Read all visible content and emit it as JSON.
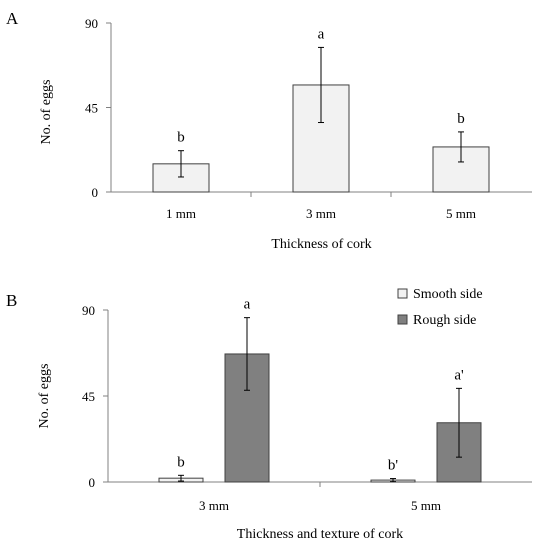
{
  "chart_data": [
    {
      "type": "bar",
      "panel": "A",
      "categories": [
        "1 mm",
        "3 mm",
        "5 mm"
      ],
      "series": [
        {
          "values": [
            15,
            57,
            24
          ],
          "errors": [
            7,
            20,
            8
          ],
          "color": "#f2f2f2"
        }
      ],
      "significance": [
        "b",
        "a",
        "b"
      ],
      "xlabel": "Thickness of cork",
      "ylabel": "No. of eggs",
      "ylim": [
        0,
        90
      ],
      "yticks": [
        0,
        45,
        90
      ],
      "grid": false,
      "legend": null
    },
    {
      "type": "bar",
      "panel": "B",
      "categories": [
        "3 mm",
        "5 mm"
      ],
      "series": [
        {
          "name": "Smooth side",
          "values": [
            2,
            1
          ],
          "errors": [
            1.5,
            0.8
          ],
          "color": "#f2f2f2"
        },
        {
          "name": "Rough side",
          "values": [
            67,
            31
          ],
          "errors": [
            19,
            18
          ],
          "color": "#808080"
        }
      ],
      "significance": [
        [
          "b",
          "a"
        ],
        [
          "b'",
          "a'"
        ]
      ],
      "xlabel": "Thickness and texture of cork",
      "ylabel": "No. of eggs",
      "ylim": [
        0,
        90
      ],
      "yticks": [
        0,
        45,
        90
      ],
      "grid": false,
      "legend": "top-right"
    }
  ]
}
